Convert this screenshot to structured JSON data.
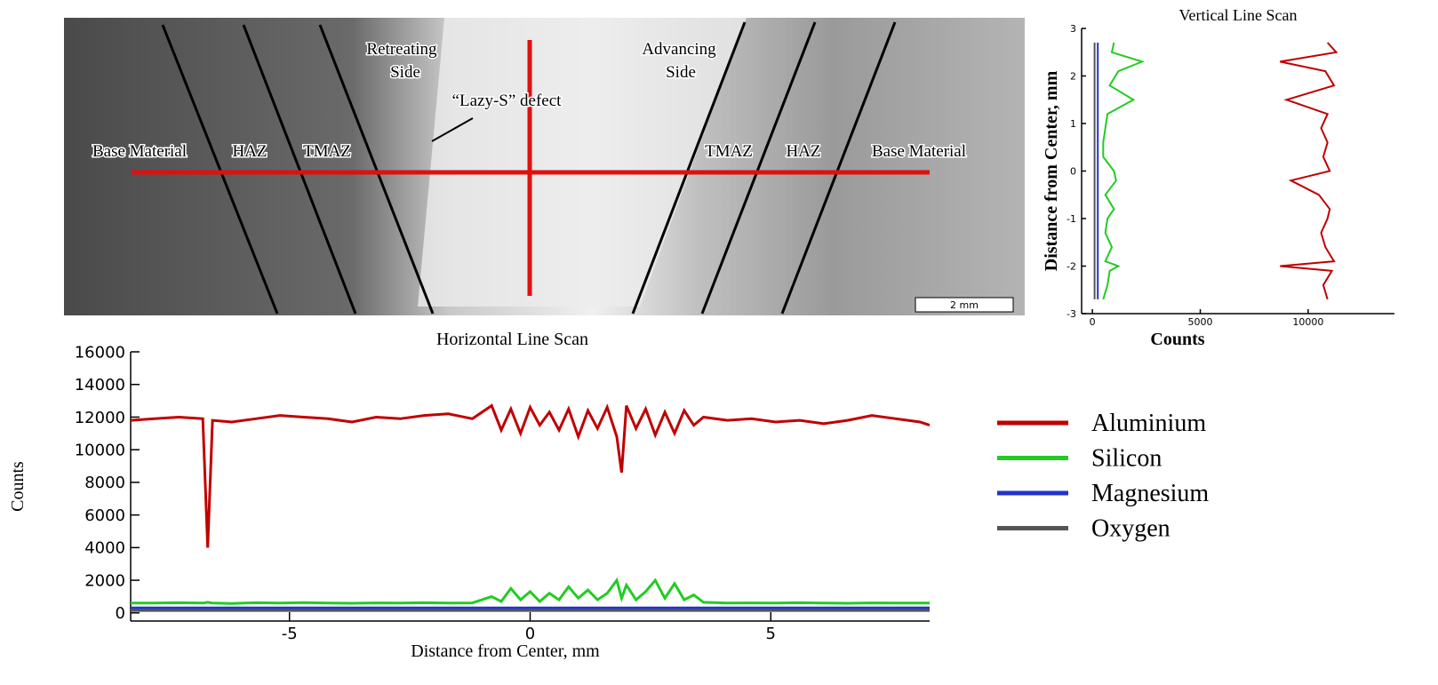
{
  "image": {
    "labels": [
      "Base Material",
      "HAZ",
      "TMAZ",
      [
        "Retreating",
        "Side"
      ],
      "“Lazy-S” defect",
      [
        "Advancing",
        "Side"
      ],
      "TMAZ",
      "HAZ",
      "Base Material"
    ],
    "scale_bar": "2 mm"
  },
  "chart_data": [
    {
      "type": "line",
      "title": "Horizontal Line Scan",
      "xlabel": "Distance from Center, mm",
      "ylabel": "Counts",
      "x": [
        -8.3,
        -7.8,
        -7.3,
        -6.8,
        -6.7,
        -6.6,
        -6.2,
        -5.7,
        -5.2,
        -4.7,
        -4.2,
        -3.7,
        -3.2,
        -2.7,
        -2.2,
        -1.7,
        -1.2,
        -0.8,
        -0.6,
        -0.4,
        -0.2,
        0,
        0.2,
        0.4,
        0.6,
        0.8,
        1,
        1.2,
        1.4,
        1.6,
        1.8,
        1.9,
        2,
        2.2,
        2.4,
        2.6,
        2.8,
        3,
        3.2,
        3.4,
        3.6,
        4.1,
        4.6,
        5.1,
        5.6,
        6.1,
        6.6,
        7.1,
        7.6,
        8.1,
        8.3
      ],
      "series": [
        {
          "name": "Aluminium",
          "color": "#c00000",
          "values": [
            11800,
            11900,
            12000,
            11900,
            4000,
            11800,
            11700,
            11900,
            12100,
            12000,
            11900,
            11700,
            12000,
            11900,
            12100,
            12200,
            11900,
            12700,
            11200,
            12500,
            11000,
            12600,
            11500,
            12300,
            11200,
            12500,
            10800,
            12400,
            11300,
            12600,
            10800,
            8600,
            12700,
            11300,
            12500,
            10900,
            12300,
            11000,
            12400,
            11500,
            12000,
            11800,
            11900,
            11700,
            11800,
            11600,
            11800,
            12100,
            11900,
            11700,
            11500
          ]
        },
        {
          "name": "Silicon",
          "color": "#22cc22",
          "values": [
            600,
            600,
            620,
            600,
            650,
            600,
            580,
            620,
            600,
            630,
            600,
            590,
            610,
            600,
            620,
            600,
            610,
            1000,
            700,
            1500,
            800,
            1300,
            700,
            1200,
            800,
            1600,
            900,
            1400,
            800,
            1200,
            2000,
            900,
            1700,
            800,
            1300,
            2000,
            900,
            1800,
            800,
            1100,
            650,
            600,
            610,
            600,
            620,
            600,
            590,
            610,
            600,
            600,
            600
          ]
        },
        {
          "name": "Magnesium",
          "color": "#2233cc",
          "values": [
            300,
            300,
            300,
            300,
            300,
            300,
            300,
            300,
            300,
            300,
            300,
            300,
            300,
            300,
            300,
            300,
            300,
            300,
            300,
            300,
            300,
            300,
            300,
            300,
            300,
            300,
            300,
            300,
            300,
            300,
            300,
            300,
            300,
            300,
            300,
            300,
            300,
            300,
            300,
            300,
            300,
            300,
            300,
            300,
            300,
            300,
            300,
            300,
            300,
            300,
            300
          ]
        },
        {
          "name": "Oxygen",
          "color": "#555555",
          "values": [
            150,
            150,
            150,
            150,
            150,
            150,
            150,
            150,
            150,
            150,
            150,
            150,
            150,
            150,
            150,
            150,
            150,
            150,
            150,
            150,
            150,
            150,
            150,
            150,
            150,
            150,
            150,
            150,
            150,
            150,
            150,
            150,
            150,
            150,
            150,
            150,
            150,
            150,
            150,
            150,
            150,
            150,
            150,
            150,
            150,
            150,
            150,
            150,
            150,
            150,
            150
          ]
        }
      ],
      "xlim": [
        -8.3,
        8.3
      ],
      "xticks": [
        -5,
        0,
        5
      ],
      "ylim": [
        -500,
        16000
      ],
      "yticks": [
        0,
        2000,
        4000,
        6000,
        8000,
        10000,
        12000,
        14000,
        16000
      ]
    },
    {
      "type": "line",
      "orientation": "vertical",
      "title": "Vertical Line Scan",
      "xlabel": "Counts",
      "ylabel": "Distance from Center, mm",
      "x": [
        -2.7,
        -2.4,
        -2.1,
        -2,
        -1.9,
        -1.6,
        -1.3,
        -1,
        -0.8,
        -0.5,
        -0.2,
        0,
        0.3,
        0.6,
        0.9,
        1.2,
        1.5,
        1.8,
        2.1,
        2.3,
        2.5,
        2.7
      ],
      "series": [
        {
          "color": "#c00000",
          "values": [
            10900,
            10700,
            11100,
            8700,
            11200,
            10800,
            10600,
            10900,
            11000,
            10500,
            9200,
            11000,
            10700,
            10900,
            10600,
            10900,
            9000,
            11200,
            10800,
            8700,
            11300,
            10900
          ]
        },
        {
          "color": "#22cc22",
          "values": [
            500,
            700,
            800,
            1200,
            600,
            900,
            600,
            700,
            1000,
            600,
            1100,
            1000,
            500,
            500,
            600,
            700,
            1900,
            800,
            1200,
            2300,
            900,
            1000
          ]
        },
        {
          "color": "#2233cc",
          "values": [
            250,
            250,
            250,
            250,
            250,
            250,
            250,
            250,
            250,
            250,
            250,
            250,
            250,
            250,
            250,
            250,
            250,
            250,
            250,
            250,
            250,
            250
          ]
        },
        {
          "color": "#555555",
          "values": [
            100,
            100,
            100,
            100,
            100,
            100,
            100,
            100,
            100,
            100,
            100,
            100,
            100,
            100,
            100,
            100,
            100,
            100,
            100,
            100,
            100,
            100
          ]
        }
      ],
      "ylim": [
        -3,
        3
      ],
      "yticks": [
        -3,
        -2,
        -1,
        0,
        1,
        2,
        3
      ],
      "xlim": [
        -500,
        14000
      ],
      "xticks": [
        0,
        5000,
        10000
      ]
    }
  ]
}
